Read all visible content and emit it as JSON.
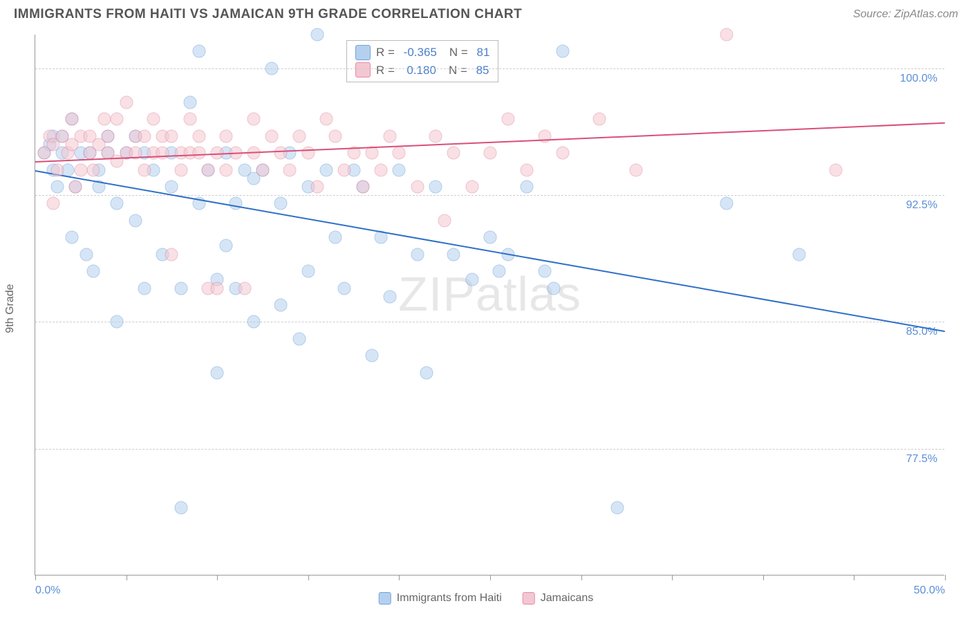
{
  "title": "IMMIGRANTS FROM HAITI VS JAMAICAN 9TH GRADE CORRELATION CHART",
  "source": "Source: ZipAtlas.com",
  "watermark": "ZIPatlas",
  "yaxis_title": "9th Grade",
  "xlim": [
    0,
    50
  ],
  "ylim": [
    70,
    102
  ],
  "yticks": [
    {
      "v": 100.0,
      "label": "100.0%"
    },
    {
      "v": 92.5,
      "label": "92.5%"
    },
    {
      "v": 85.0,
      "label": "85.0%"
    },
    {
      "v": 77.5,
      "label": "77.5%"
    }
  ],
  "xticks": [
    0,
    5,
    10,
    15,
    20,
    25,
    30,
    35,
    40,
    45,
    50
  ],
  "xtick_labels": [
    {
      "v": 0,
      "label": "0.0%"
    },
    {
      "v": 50,
      "label": "50.0%"
    }
  ],
  "series": [
    {
      "name": "Immigrants from Haiti",
      "color_fill": "#b5d0ee",
      "color_stroke": "#6fa3dc",
      "trend_color": "#2e6fc7",
      "R": "-0.365",
      "N": "81",
      "trend": {
        "x1": 0,
        "y1": 94.0,
        "x2": 50,
        "y2": 84.5
      },
      "points": [
        [
          0.5,
          95
        ],
        [
          0.8,
          95.5
        ],
        [
          1,
          96
        ],
        [
          1,
          94
        ],
        [
          1.2,
          93
        ],
        [
          1.5,
          95
        ],
        [
          1.5,
          96
        ],
        [
          1.8,
          94
        ],
        [
          2,
          97
        ],
        [
          2,
          90
        ],
        [
          2.2,
          93
        ],
        [
          2.5,
          95
        ],
        [
          2.8,
          89
        ],
        [
          3,
          95
        ],
        [
          3.2,
          88
        ],
        [
          3.5,
          94
        ],
        [
          3.5,
          93
        ],
        [
          4,
          96
        ],
        [
          4,
          95
        ],
        [
          4.5,
          92
        ],
        [
          4.5,
          85
        ],
        [
          5,
          95
        ],
        [
          5.5,
          96
        ],
        [
          5.5,
          91
        ],
        [
          6,
          87
        ],
        [
          6,
          95
        ],
        [
          6.5,
          94
        ],
        [
          7,
          89
        ],
        [
          7.5,
          95
        ],
        [
          7.5,
          93
        ],
        [
          8,
          87
        ],
        [
          8,
          74
        ],
        [
          8.5,
          98
        ],
        [
          9,
          92
        ],
        [
          9,
          101
        ],
        [
          9.5,
          94
        ],
        [
          10,
          87.5
        ],
        [
          10,
          82
        ],
        [
          10.5,
          95
        ],
        [
          10.5,
          89.5
        ],
        [
          11,
          92
        ],
        [
          11,
          87
        ],
        [
          11.5,
          94
        ],
        [
          12,
          85
        ],
        [
          12,
          93.5
        ],
        [
          12.5,
          94
        ],
        [
          13,
          100
        ],
        [
          13.5,
          92
        ],
        [
          13.5,
          86
        ],
        [
          14,
          95
        ],
        [
          14.5,
          84
        ],
        [
          15,
          93
        ],
        [
          15,
          88
        ],
        [
          15.5,
          102
        ],
        [
          16,
          94
        ],
        [
          16.5,
          90
        ],
        [
          17,
          87
        ],
        [
          17.5,
          94
        ],
        [
          18,
          93
        ],
        [
          18.5,
          83
        ],
        [
          19,
          90
        ],
        [
          19.5,
          86.5
        ],
        [
          20,
          94
        ],
        [
          21,
          89
        ],
        [
          21.5,
          82
        ],
        [
          22,
          93
        ],
        [
          23,
          89
        ],
        [
          24,
          87.5
        ],
        [
          25,
          90
        ],
        [
          25.5,
          88
        ],
        [
          26,
          89
        ],
        [
          27,
          93
        ],
        [
          28,
          88
        ],
        [
          28.5,
          87
        ],
        [
          29,
          101
        ],
        [
          32,
          74
        ],
        [
          38,
          92
        ],
        [
          42,
          89
        ]
      ]
    },
    {
      "name": "Jamaicans",
      "color_fill": "#f3c7d1",
      "color_stroke": "#e58ba4",
      "trend_color": "#d94f78",
      "R": "0.180",
      "N": "85",
      "trend": {
        "x1": 0,
        "y1": 94.5,
        "x2": 50,
        "y2": 96.8
      },
      "points": [
        [
          0.5,
          95
        ],
        [
          0.8,
          96
        ],
        [
          1,
          95.5
        ],
        [
          1,
          92
        ],
        [
          1.2,
          94
        ],
        [
          1.5,
          96
        ],
        [
          1.8,
          95
        ],
        [
          2,
          97
        ],
        [
          2,
          95.5
        ],
        [
          2.2,
          93
        ],
        [
          2.5,
          94
        ],
        [
          2.5,
          96
        ],
        [
          3,
          95
        ],
        [
          3,
          96
        ],
        [
          3.2,
          94
        ],
        [
          3.5,
          95.5
        ],
        [
          3.8,
          97
        ],
        [
          4,
          95
        ],
        [
          4,
          96
        ],
        [
          4.5,
          94.5
        ],
        [
          4.5,
          97
        ],
        [
          5,
          95
        ],
        [
          5,
          98
        ],
        [
          5.5,
          96
        ],
        [
          5.5,
          95
        ],
        [
          6,
          94
        ],
        [
          6,
          96
        ],
        [
          6.5,
          95
        ],
        [
          6.5,
          97
        ],
        [
          7,
          96
        ],
        [
          7,
          95
        ],
        [
          7.5,
          89
        ],
        [
          7.5,
          96
        ],
        [
          8,
          95
        ],
        [
          8,
          94
        ],
        [
          8.5,
          97
        ],
        [
          8.5,
          95
        ],
        [
          9,
          96
        ],
        [
          9,
          95
        ],
        [
          9.5,
          94
        ],
        [
          9.5,
          87
        ],
        [
          10,
          95
        ],
        [
          10,
          87
        ],
        [
          10.5,
          96
        ],
        [
          10.5,
          94
        ],
        [
          11,
          95
        ],
        [
          11.5,
          87
        ],
        [
          12,
          97
        ],
        [
          12,
          95
        ],
        [
          12.5,
          94
        ],
        [
          13,
          96
        ],
        [
          13.5,
          95
        ],
        [
          14,
          94
        ],
        [
          14.5,
          96
        ],
        [
          15,
          95
        ],
        [
          15.5,
          93
        ],
        [
          16,
          97
        ],
        [
          16.5,
          96
        ],
        [
          17,
          94
        ],
        [
          17.5,
          95
        ],
        [
          18,
          93
        ],
        [
          18.5,
          95
        ],
        [
          19,
          94
        ],
        [
          19.5,
          96
        ],
        [
          20,
          95
        ],
        [
          21,
          93
        ],
        [
          22,
          96
        ],
        [
          22.5,
          91
        ],
        [
          23,
          95
        ],
        [
          24,
          93
        ],
        [
          25,
          95
        ],
        [
          26,
          97
        ],
        [
          27,
          94
        ],
        [
          28,
          96
        ],
        [
          29,
          95
        ],
        [
          31,
          97
        ],
        [
          33,
          94
        ],
        [
          38,
          102
        ],
        [
          44,
          94
        ]
      ]
    }
  ],
  "legend_bottom": [
    {
      "label": "Immigrants from Haiti",
      "fill": "#b5d0ee",
      "stroke": "#6fa3dc"
    },
    {
      "label": "Jamaicans",
      "fill": "#f3c7d1",
      "stroke": "#e58ba4"
    }
  ],
  "legend_labels": {
    "R": "R =",
    "N": "N ="
  }
}
